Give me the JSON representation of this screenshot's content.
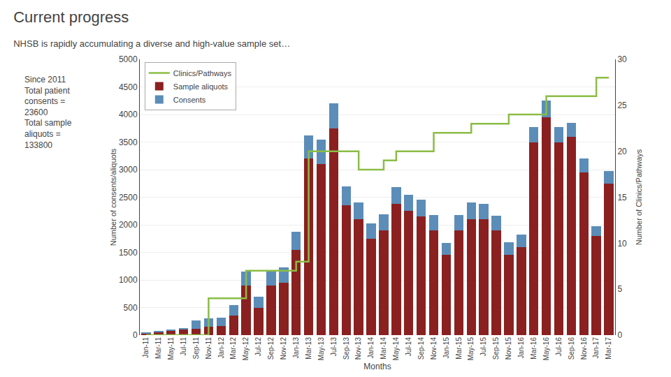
{
  "chart_data": {
    "type": "bar",
    "title": "Current progress",
    "subtitle": "NHSB is rapidly accumulating a diverse and high-value sample set…",
    "annotations": [
      "Since 2011",
      "Total patient",
      "consents =",
      "23600",
      "Total sample",
      "aliquots =",
      "133800"
    ],
    "xlabel": "Months",
    "ylabel": "Number of consents/aliquots",
    "y2label": "Number of Clinics/Pathways",
    "categories": [
      "Jan-11",
      "Mar-11",
      "May-11",
      "Jul-11",
      "Sep-11",
      "Nov-11",
      "Jan-12",
      "Mar-12",
      "May-12",
      "Jul-12",
      "Sep-12",
      "Nov-12",
      "Jan-13",
      "Mar-13",
      "May-13",
      "Jul-13",
      "Sep-13",
      "Nov-13",
      "Jan-14",
      "Mar-14",
      "May-14",
      "Jul-14",
      "Sep-14",
      "Nov-14",
      "Jan-15",
      "Mar-15",
      "May-15",
      "Jul-15",
      "Sep-15",
      "Nov-15",
      "Jan-16",
      "Mar-16",
      "May-16",
      "Jul-16",
      "Sep-16",
      "Nov-16",
      "Jan-17",
      "Mar-17"
    ],
    "series": [
      {
        "name": "Clinics/Pathways",
        "type": "line",
        "axis": "y2",
        "line_style": "step",
        "color": "#8BBD45",
        "values": [
          0,
          0,
          0,
          0,
          0,
          4,
          4,
          4,
          7,
          7,
          7,
          7,
          8,
          20,
          20,
          20,
          20,
          18,
          18,
          19,
          20,
          20,
          20,
          22,
          22,
          22,
          23,
          23,
          23,
          24,
          24,
          24,
          26,
          26,
          26,
          26,
          28,
          28
        ]
      },
      {
        "name": "Sample aliquots",
        "type": "bar",
        "color": "#8B2020",
        "values": [
          30,
          60,
          80,
          100,
          120,
          150,
          170,
          350,
          900,
          500,
          900,
          950,
          1550,
          3200,
          3100,
          3750,
          2350,
          2100,
          1750,
          1900,
          2380,
          2250,
          2150,
          1900,
          1450,
          1900,
          2100,
          2100,
          1900,
          1450,
          1600,
          3500,
          3950,
          3500,
          3600,
          2950,
          1800,
          2750
        ]
      },
      {
        "name": "Consents",
        "type": "bar",
        "color": "#5B8DB8",
        "values": [
          10,
          15,
          20,
          30,
          150,
          150,
          150,
          200,
          250,
          200,
          250,
          280,
          320,
          420,
          440,
          450,
          350,
          300,
          280,
          290,
          300,
          300,
          300,
          280,
          220,
          280,
          300,
          280,
          270,
          230,
          220,
          270,
          300,
          270,
          250,
          250,
          180,
          220
        ]
      }
    ],
    "stacked": true,
    "ylim": [
      0,
      5000
    ],
    "yticks": [
      0,
      500,
      1000,
      1500,
      2000,
      2500,
      3000,
      3500,
      4000,
      4500,
      5000
    ],
    "y2lim": [
      0,
      30
    ],
    "y2ticks": [
      0,
      5,
      10,
      15,
      20,
      25,
      30
    ],
    "grid": true,
    "legend": "upper left"
  }
}
